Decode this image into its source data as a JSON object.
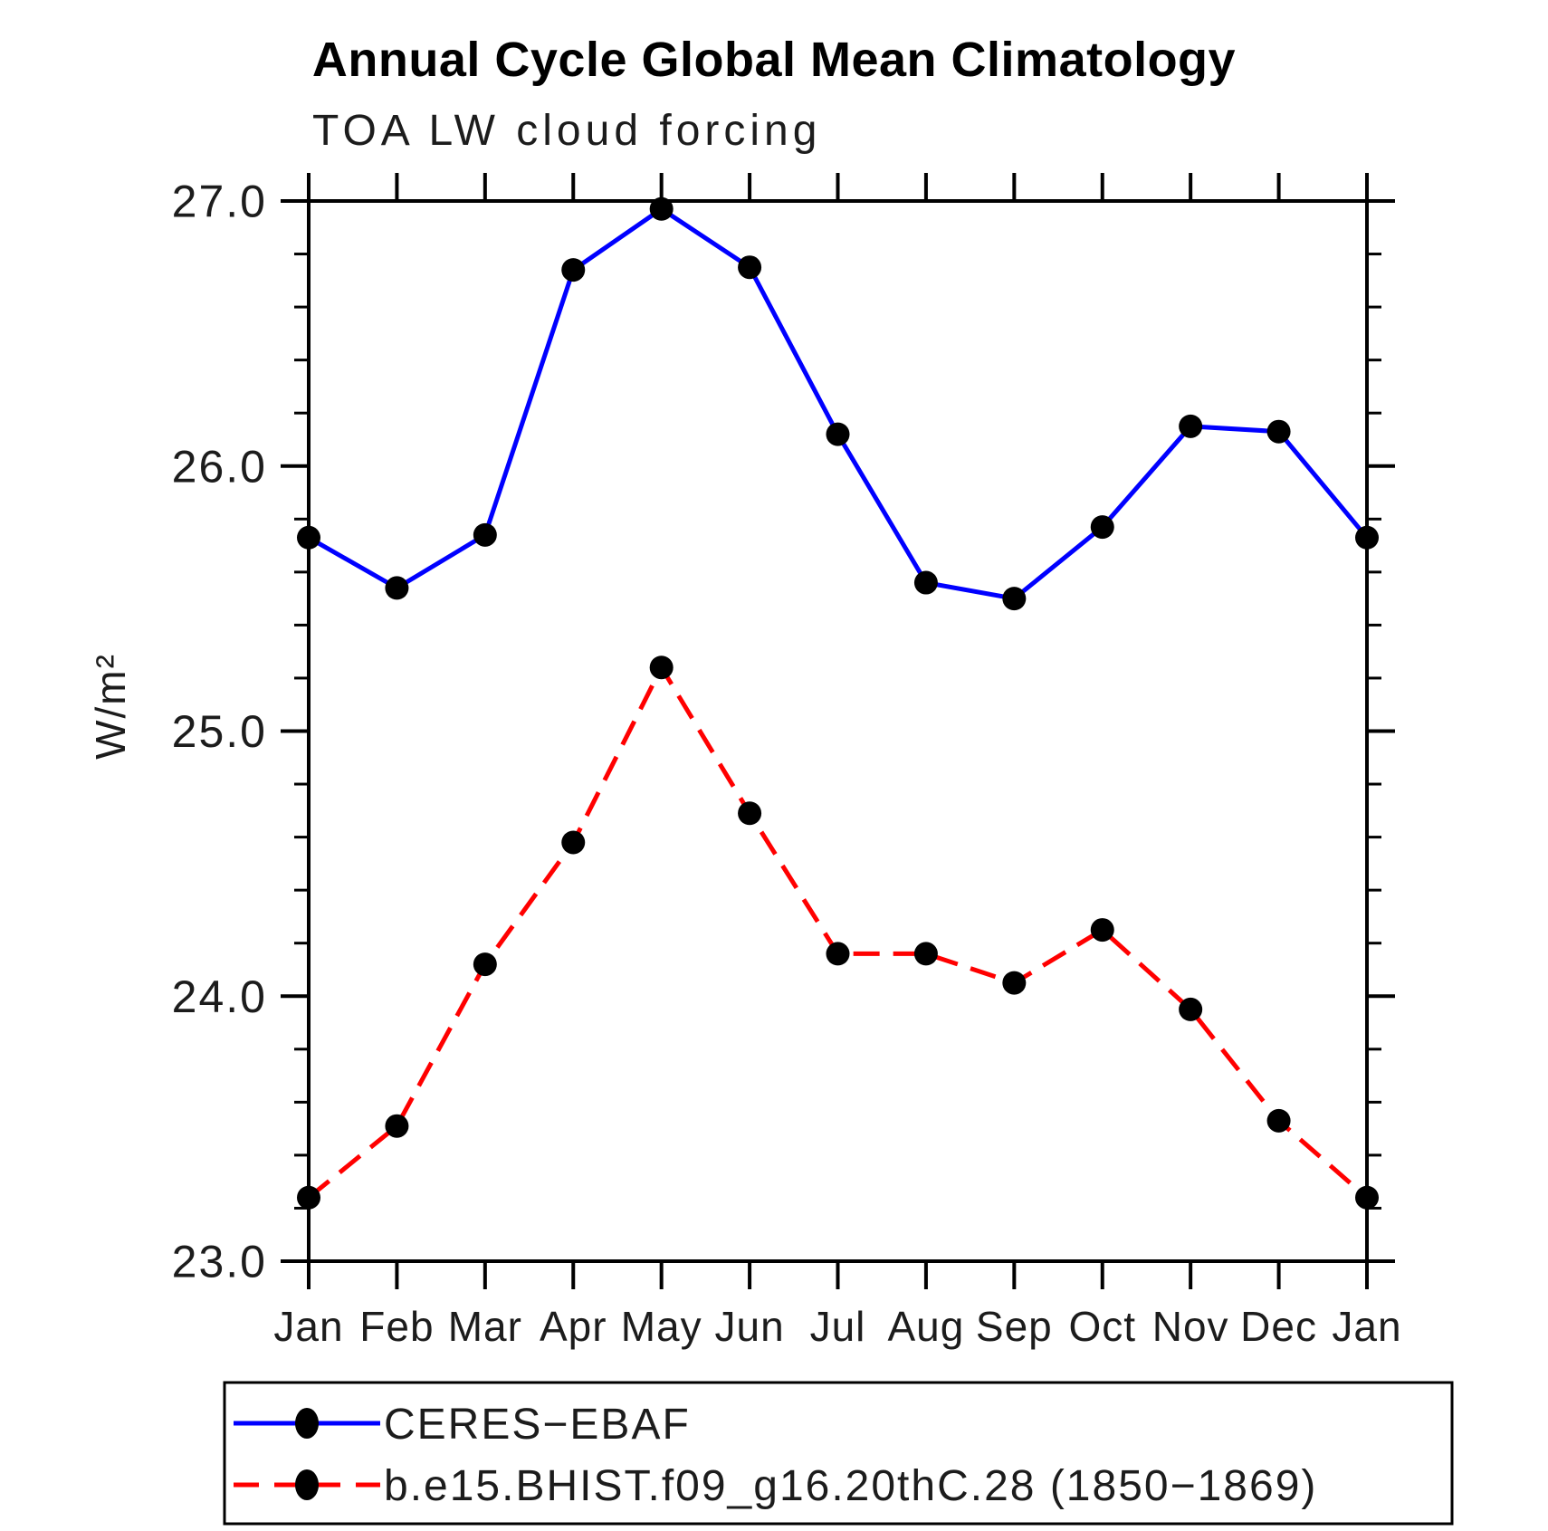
{
  "chart_data": {
    "type": "line",
    "title": "Annual Cycle Global Mean Climatology",
    "subtitle": "TOA LW cloud forcing",
    "ylabel": "W/m²",
    "xlabel": "",
    "categories": [
      "Jan",
      "Feb",
      "Mar",
      "Apr",
      "May",
      "Jun",
      "Jul",
      "Aug",
      "Sep",
      "Oct",
      "Nov",
      "Dec",
      "Jan"
    ],
    "ylim": [
      23.0,
      27.0
    ],
    "ytick_major_labels": [
      "23.0",
      "24.0",
      "25.0",
      "26.0",
      "27.0"
    ],
    "ytick_major_values": [
      23.0,
      24.0,
      25.0,
      26.0,
      27.0
    ],
    "ytick_minor_step": 0.2,
    "grid": false,
    "legend_position": "bottom",
    "axis_color": "#000000",
    "marker_color": "#000000",
    "series": [
      {
        "name": "CERES−EBAF",
        "color": "#0000ff",
        "line_style": "solid",
        "marker": "dot",
        "values": [
          25.73,
          25.54,
          25.74,
          26.74,
          26.97,
          26.75,
          26.12,
          25.56,
          25.5,
          25.77,
          26.15,
          26.13,
          25.73
        ]
      },
      {
        "name": "b.e15.BHIST.f09_g16.20thC.28 (1850−1869)",
        "color": "#ff0000",
        "line_style": "dashed",
        "marker": "dot",
        "values": [
          23.24,
          23.51,
          24.12,
          24.58,
          25.24,
          24.69,
          24.16,
          24.16,
          24.05,
          24.25,
          23.95,
          23.53,
          23.24
        ]
      }
    ]
  }
}
